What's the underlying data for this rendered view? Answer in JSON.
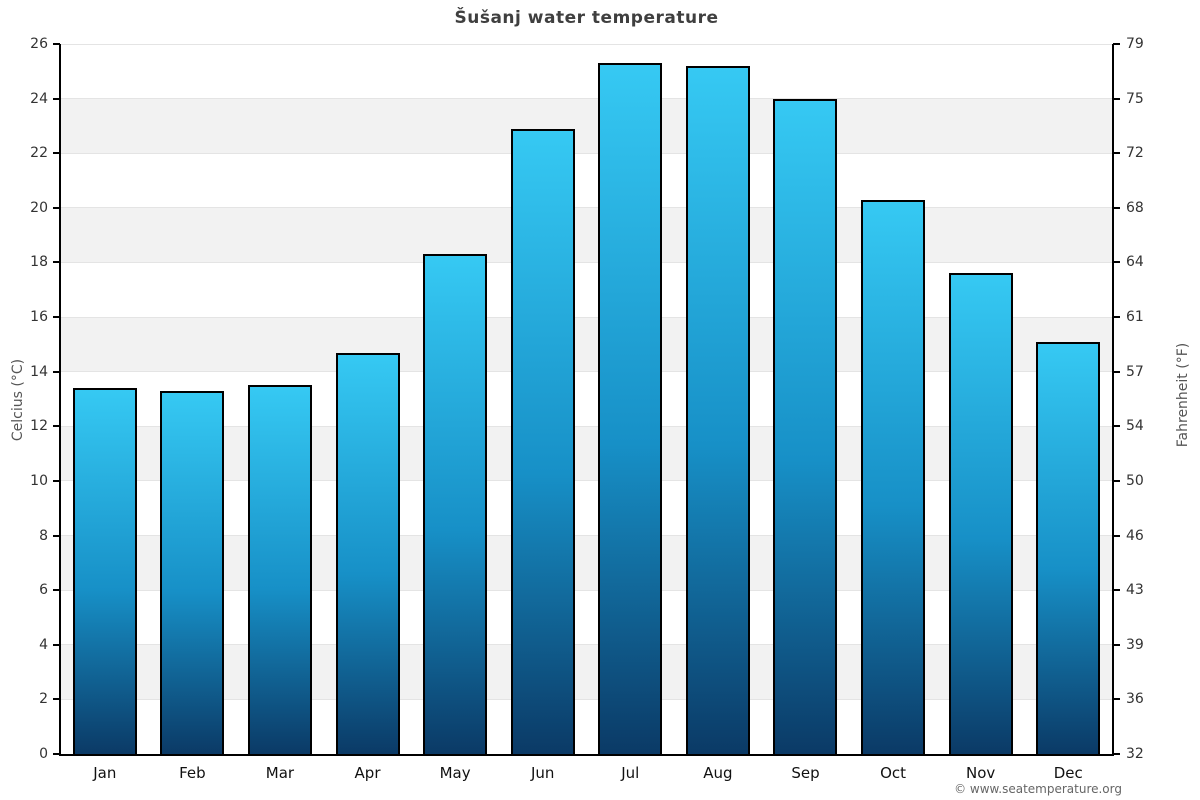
{
  "chart": {
    "watermark": "© www.seatemperature.org"
  },
  "chart_data": {
    "type": "bar",
    "title": "Šušanj water temperature",
    "categories": [
      "Jan",
      "Feb",
      "Mar",
      "Apr",
      "May",
      "Jun",
      "Jul",
      "Aug",
      "Sep",
      "Oct",
      "Nov",
      "Dec"
    ],
    "values": [
      13.4,
      13.3,
      13.5,
      14.7,
      18.3,
      22.9,
      25.3,
      25.2,
      24.0,
      20.3,
      17.6,
      15.1
    ],
    "ylabel_left": "Celcius (°C)",
    "ylabel_right": "Fahrenheit (°F)",
    "ylim": [
      0,
      26
    ],
    "yticks_celsius": [
      0,
      2,
      4,
      6,
      8,
      10,
      12,
      14,
      16,
      18,
      20,
      22,
      24,
      26
    ],
    "yticks_fahrenheit": [
      32,
      36,
      39,
      43,
      46,
      50,
      54,
      57,
      61,
      64,
      68,
      72,
      75,
      79
    ],
    "grid": "horizontal gridlines every 2°C with alternating shaded bands",
    "legend": "none",
    "colors": {
      "bar_gradient_top": "#36c9f3",
      "bar_gradient_bottom": "#0b3a66",
      "bar_border": "#000000",
      "band_shade": "#f2f2f2",
      "gridline": "#e4e4e4",
      "title_text": "#3f3f3f",
      "axis_text": "#333333"
    }
  }
}
